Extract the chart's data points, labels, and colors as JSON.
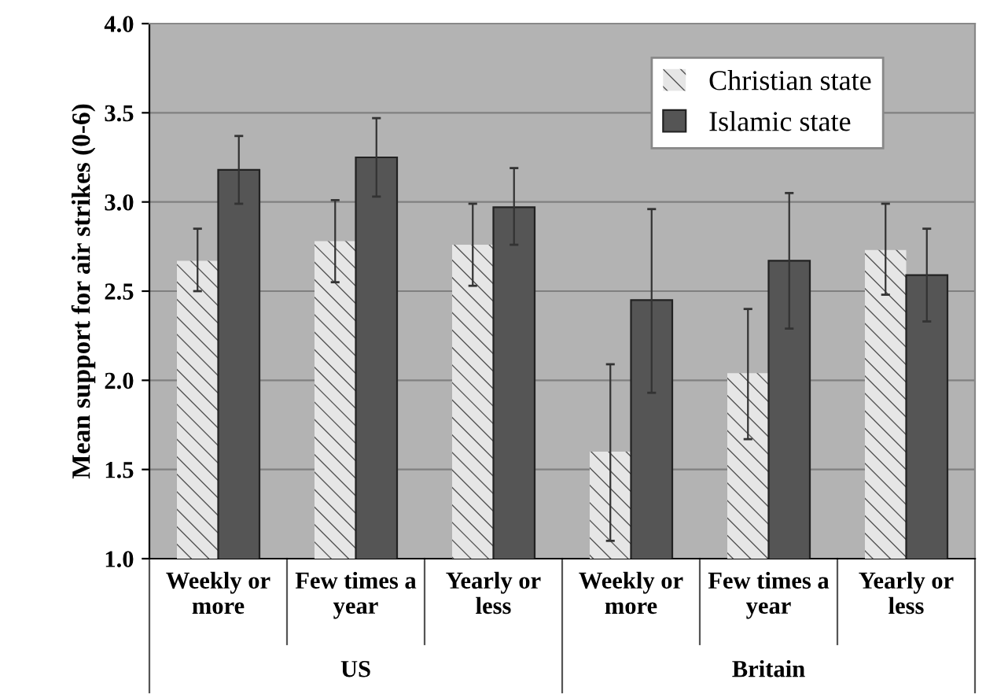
{
  "chart_data": {
    "type": "bar",
    "ylabel": "Mean support for air strikes (0-6)",
    "categories": [
      "Weekly or\nmore",
      "Few times a\nyear",
      "Yearly or\nless",
      "Weekly or\nmore",
      "Few times a\nyear",
      "Yearly or\nless"
    ],
    "annotations": [
      "US",
      "Britain"
    ],
    "series": [
      {
        "name": "Christian state",
        "color": "#e6e6e6",
        "values": [
          2.67,
          2.78,
          2.76,
          1.6,
          2.04,
          2.73
        ],
        "errors": [
          [
            2.5,
            2.85
          ],
          [
            2.55,
            3.01
          ],
          [
            2.53,
            2.99
          ],
          [
            1.1,
            2.09
          ],
          [
            1.67,
            2.4
          ],
          [
            2.48,
            2.99
          ]
        ]
      },
      {
        "name": "Islamic state",
        "color": "#555555",
        "values": [
          3.18,
          3.25,
          2.97,
          2.45,
          2.67,
          2.59
        ],
        "errors": [
          [
            2.99,
            3.37
          ],
          [
            3.03,
            3.47
          ],
          [
            2.76,
            3.19
          ],
          [
            1.93,
            2.96
          ],
          [
            2.29,
            3.05
          ],
          [
            2.33,
            2.85
          ]
        ]
      }
    ],
    "ylim": [
      1.0,
      4.0
    ],
    "yticks": [
      {
        "value": 1.0,
        "label": "1.0"
      },
      {
        "value": 1.5,
        "label": "1.5"
      },
      {
        "value": 2.0,
        "label": "2.0"
      },
      {
        "value": 2.5,
        "label": "2.5"
      },
      {
        "value": 3.0,
        "label": "3.0"
      },
      {
        "value": 3.5,
        "label": "3.5"
      },
      {
        "value": 4.0,
        "label": "4.0"
      }
    ],
    "grid": "y",
    "legend": "top right"
  }
}
